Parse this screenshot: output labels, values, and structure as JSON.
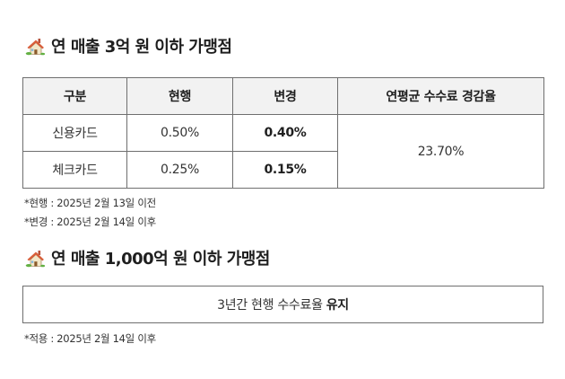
{
  "section1": {
    "icon": "house-icon",
    "title": "연 매출 3억 원 이하 가맹점"
  },
  "table": {
    "headers": [
      "구분",
      "현행",
      "변경",
      "연평균 수수료 경감율"
    ],
    "rows": [
      {
        "type": "신용카드",
        "current": "0.50%",
        "changed": "0.40%"
      },
      {
        "type": "체크카드",
        "current": "0.25%",
        "changed": "0.15%"
      }
    ],
    "reduction": "23.70%"
  },
  "notes1": [
    "*현행 : 2025년 2월 13일 이전",
    "*변경 : 2025년 2월 14일 이후"
  ],
  "section2": {
    "icon": "house-icon",
    "title": "연 매출 1,000억 원 이하 가맹점"
  },
  "box": {
    "text": "3년간 현행 수수료율",
    "emphasis": "유지"
  },
  "notes2": [
    "*적용 : 2025년 2월 14일 이후"
  ]
}
